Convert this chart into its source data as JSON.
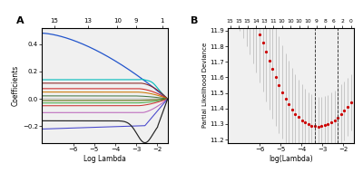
{
  "panel_a": {
    "xlabel": "Log Lambda",
    "ylabel": "Coefficients",
    "xlim": [
      -7.5,
      -1.5
    ],
    "ylim": [
      -0.32,
      0.52
    ],
    "yticks": [
      -0.2,
      0.0,
      0.2,
      0.4
    ],
    "xticks": [
      -6,
      -5,
      -4,
      -3,
      -2
    ],
    "top_axis_labels": [
      "15",
      "13",
      "10",
      "9",
      "1"
    ],
    "top_axis_positions": [
      -6.9,
      -5.3,
      -3.9,
      -3.0,
      -1.75
    ],
    "bg_color": "#f0f0f0"
  },
  "panel_b": {
    "xlabel": "log(Lambda)",
    "ylabel": "Partial Likelihood Deviance",
    "xlim": [
      -7.5,
      -1.5
    ],
    "ylim": [
      11.18,
      11.92
    ],
    "yticks": [
      11.2,
      11.3,
      11.4,
      11.5,
      11.6,
      11.7,
      11.8,
      11.9
    ],
    "xticks": [
      -6,
      -5,
      -4,
      -3,
      -2
    ],
    "top_axis_labels": [
      "15",
      "15",
      "15",
      "14",
      "13",
      "11",
      "10",
      "10",
      "10",
      "10",
      "9",
      "8",
      "6",
      "2",
      "0"
    ],
    "vline1": -3.35,
    "vline2": -2.28,
    "dot_color": "#cc0000",
    "error_color": "#bbbbbb",
    "bg_color": "#f0f0f0"
  }
}
